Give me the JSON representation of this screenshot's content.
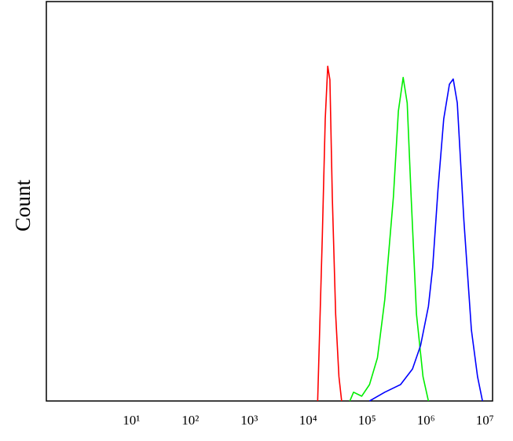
{
  "chart_data": {
    "type": "line",
    "y_label": "Count",
    "x_log": true,
    "xlim": [
      0.36,
      13500000
    ],
    "ylim": [
      0,
      100
    ],
    "xticks": [
      {
        "value": 10,
        "label": "10¹"
      },
      {
        "value": 100,
        "label": "10²"
      },
      {
        "value": 1000,
        "label": "10³"
      },
      {
        "value": 10000,
        "label": "10⁴"
      },
      {
        "value": 100000,
        "label": "10⁵"
      },
      {
        "value": 1000000,
        "label": "10⁶"
      },
      {
        "value": 10000000,
        "label": "10⁷"
      }
    ],
    "series": [
      {
        "color": "#ff0000",
        "x": [
          14500,
          17400,
          19500,
          21500,
          23400,
          25700,
          29300,
          33300,
          37000
        ],
        "values": [
          0,
          41.3,
          70.6,
          83.8,
          80.4,
          51.1,
          21.7,
          6.1,
          0
        ]
      },
      {
        "color": "#00ee00",
        "x": [
          51000,
          59000,
          81000,
          110000,
          150000,
          200000,
          280000,
          340000,
          410000,
          480000,
          560000,
          690000,
          890000,
          1100000
        ],
        "values": [
          0,
          2.2,
          1.2,
          4.1,
          10.8,
          25.4,
          51.1,
          72.6,
          81.0,
          74.6,
          51.1,
          21.7,
          6.1,
          0
        ]
      },
      {
        "color": "#0000ff",
        "x": [
          110000,
          200000,
          370000,
          590000,
          810000,
          1100000,
          1300000,
          1600000,
          2000000,
          2500000,
          2900000,
          3400000,
          4400000,
          5900000,
          7500000,
          9100000
        ],
        "values": [
          0,
          2.2,
          4.1,
          8.0,
          13.9,
          23.7,
          33.5,
          53.0,
          70.6,
          79.3,
          80.6,
          74.6,
          45.2,
          17.8,
          6.1,
          0
        ]
      }
    ]
  }
}
